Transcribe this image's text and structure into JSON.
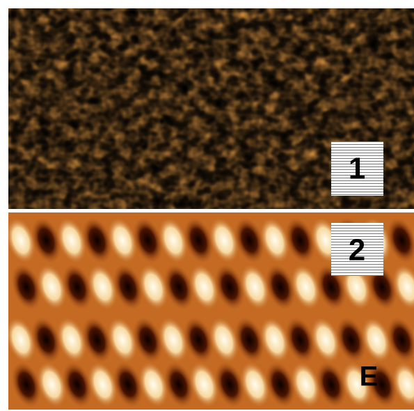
{
  "panels": [
    {
      "label": "1"
    },
    {
      "label": "2"
    }
  ],
  "figure_label": "E"
}
